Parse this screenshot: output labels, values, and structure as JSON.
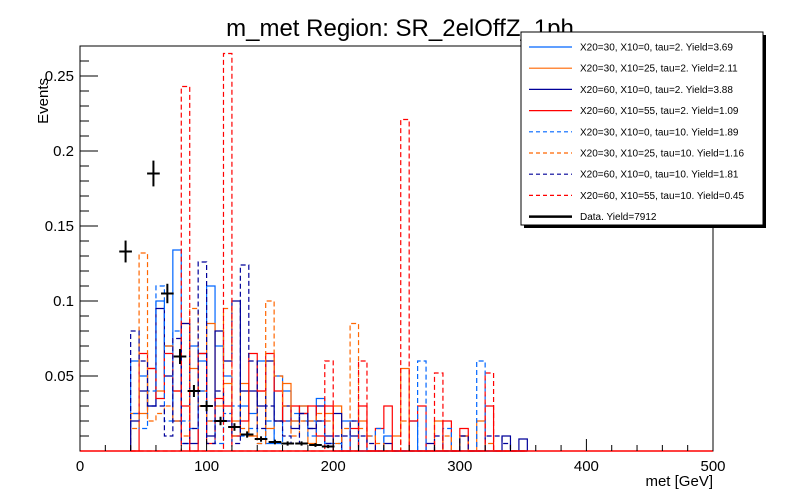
{
  "chart_data": {
    "type": "histogram",
    "title": "m_met Region: SR_2elOffZ_1ph",
    "xlabel": "met [GeV]",
    "ylabel": "Events",
    "xlim": [
      0,
      500
    ],
    "ylim": [
      0,
      0.27
    ],
    "xticks": [
      "0",
      "100",
      "200",
      "300",
      "400",
      "500"
    ],
    "yticks": [
      "0.05",
      "0.1",
      "0.15",
      "0.2",
      "0.25"
    ],
    "bin_start": 40,
    "bin_width": 6.667,
    "legend_position": "top-right",
    "series": [
      {
        "name": "X20=30, X10=0, tau=2. Yield=3.69",
        "color": "#0066ff",
        "dashed": false,
        "values": [
          0.06,
          0.05,
          0.03,
          0.1,
          0.07,
          0.134,
          0.005,
          0.07,
          0.06,
          0.11,
          0.07,
          0.05,
          0.01,
          0.03,
          0.025,
          0.06,
          0.005,
          0.05,
          0.04,
          0.02,
          0.03,
          0.02,
          0.035,
          0.005,
          0,
          0.02,
          0,
          0,
          0,
          0,
          0.01,
          0,
          0,
          0.02,
          0,
          0,
          0,
          0,
          0,
          0.01,
          0,
          0,
          0,
          0,
          0,
          0,
          0
        ]
      },
      {
        "name": "X20=30, X10=25, tau=2. Yield=2.11",
        "color": "#ff6600",
        "dashed": false,
        "values": [
          0.025,
          0.025,
          0.055,
          0.04,
          0.07,
          0.04,
          0.085,
          0.055,
          0.04,
          0.085,
          0.03,
          0.045,
          0.02,
          0.045,
          0.01,
          0.04,
          0.015,
          0.02,
          0.045,
          0.02,
          0.03,
          0.005,
          0.02,
          0.025,
          0.03,
          0,
          0,
          0.02,
          0,
          0,
          0,
          0.01,
          0.055,
          0,
          0,
          0,
          0.02,
          0,
          0,
          0.01,
          0,
          0.02,
          0,
          0,
          0,
          0,
          0
        ]
      },
      {
        "name": "X20=60, X10=0, tau=2. Yield=3.88",
        "color": "#000099",
        "dashed": false,
        "values": [
          0.02,
          0.04,
          0.03,
          0.095,
          0.05,
          0.02,
          0.085,
          0.005,
          0.065,
          0.01,
          0.08,
          0.06,
          0.1,
          0.04,
          0.04,
          0.03,
          0.06,
          0.02,
          0.03,
          0.015,
          0.025,
          0.015,
          0.03,
          0.01,
          0.025,
          0,
          0.01,
          0,
          0,
          0,
          0.005,
          0,
          0,
          0,
          0,
          0.005,
          0,
          0,
          0,
          0,
          0,
          0,
          0,
          0,
          0.01,
          0,
          0.008
        ]
      },
      {
        "name": "X20=60, X10=55, tau=2. Yield=1.09",
        "color": "#ff0000",
        "dashed": false,
        "values": [
          0,
          0.065,
          0.055,
          0.035,
          0.065,
          0.04,
          0.03,
          0,
          0.065,
          0.005,
          0.035,
          0.03,
          0.01,
          0.02,
          0.065,
          0.04,
          0.065,
          0.04,
          0.02,
          0.03,
          0.025,
          0.03,
          0.01,
          0.03,
          0,
          0,
          0.015,
          0.03,
          0,
          0.015,
          0.03,
          0,
          0,
          0.02,
          0.03,
          0,
          0,
          0.02,
          0,
          0.015,
          0,
          0,
          0.03,
          0,
          0,
          0,
          0
        ]
      },
      {
        "name": "X20=30, X10=0, tau=10. Yield=1.89",
        "color": "#0066ff",
        "dashed": true,
        "values": [
          0.025,
          0.015,
          0.04,
          0.11,
          0.02,
          0.08,
          0.02,
          0.015,
          0.04,
          0.02,
          0.005,
          0.025,
          0.03,
          0.01,
          0.015,
          0.005,
          0.02,
          0.005,
          0.02,
          0.025,
          0.02,
          0.01,
          0.02,
          0.005,
          0.005,
          0,
          0.02,
          0,
          0.01,
          0.015,
          0,
          0,
          0,
          0,
          0.06,
          0,
          0,
          0.015,
          0,
          0,
          0,
          0.06,
          0,
          0,
          0,
          0,
          0
        ]
      },
      {
        "name": "X20=30, X10=25, tau=10. Yield=1.16",
        "color": "#ff6600",
        "dashed": true,
        "values": [
          0.015,
          0.132,
          0.02,
          0.025,
          0.03,
          0.02,
          0.01,
          0.095,
          0.03,
          0.02,
          0.02,
          0.095,
          0.01,
          0.015,
          0.01,
          0.005,
          0.1,
          0.05,
          0.03,
          0.01,
          0.02,
          0.02,
          0.025,
          0.02,
          0.005,
          0.015,
          0.085,
          0.015,
          0.01,
          0.005,
          0,
          0,
          0.02,
          0,
          0,
          0,
          0,
          0.01,
          0,
          0.01,
          0,
          0,
          0.005,
          0,
          0,
          0,
          0
        ]
      },
      {
        "name": "X20=60, X10=0, tau=10. Yield=1.81",
        "color": "#000099",
        "dashed": true,
        "values": [
          0.08,
          0.06,
          0.03,
          0.03,
          0.01,
          0.075,
          0.005,
          0.015,
          0.126,
          0.005,
          0.04,
          0.02,
          0.005,
          0.124,
          0.06,
          0.015,
          0.03,
          0.02,
          0.01,
          0.005,
          0.025,
          0.015,
          0.02,
          0.005,
          0.01,
          0.01,
          0.02,
          0.01,
          0.005,
          0,
          0,
          0,
          0,
          0,
          0,
          0,
          0.01,
          0,
          0,
          0.01,
          0,
          0,
          0.01,
          0.01,
          0.005,
          0,
          0
        ]
      },
      {
        "name": "X20=60, X10=55, tau=10. Yield=0.45",
        "color": "#ff0000",
        "dashed": true,
        "values": [
          0,
          0,
          0,
          0,
          0,
          0,
          0.243,
          0,
          0,
          0,
          0,
          0.265,
          0,
          0,
          0,
          0,
          0,
          0,
          0,
          0,
          0,
          0,
          0,
          0.06,
          0,
          0,
          0,
          0.06,
          0,
          0,
          0,
          0,
          0.221,
          0,
          0,
          0,
          0.052,
          0,
          0,
          0,
          0,
          0,
          0.052,
          0,
          0,
          0,
          0
        ]
      }
    ],
    "data_series": {
      "name": "Data. Yield=7912",
      "color": "#000000",
      "x": [
        36,
        58,
        69,
        79,
        90,
        100,
        111,
        122,
        132,
        143,
        154,
        164,
        175,
        186,
        196
      ],
      "y": [
        0.133,
        0.185,
        0.105,
        0.063,
        0.04,
        0.03,
        0.02,
        0.016,
        0.011,
        0.008,
        0.006,
        0.005,
        0.005,
        0.004,
        0.003
      ]
    }
  }
}
